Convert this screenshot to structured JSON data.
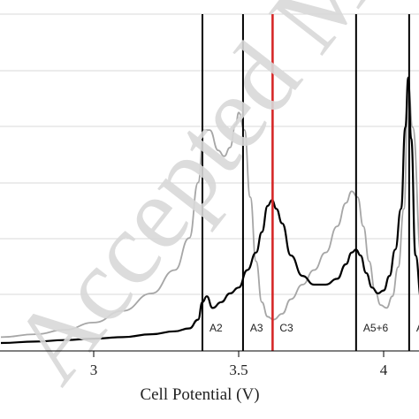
{
  "chart_data": {
    "type": "line",
    "title": "",
    "xlabel": "Cell Potential (V)",
    "ylabel": "",
    "xlim": [
      2.68,
      4.13
    ],
    "ylim": [
      0,
      1
    ],
    "x_ticks": [
      "3",
      "3.5",
      "4"
    ],
    "x_tick_values": [
      3.0,
      3.5,
      4.0
    ],
    "grid": "horizontal",
    "series": [
      {
        "color": "#a6a6a6",
        "x": [
          2.68,
          2.8,
          2.9,
          3.0,
          3.1,
          3.2,
          3.28,
          3.33,
          3.36,
          3.38,
          3.4,
          3.43,
          3.45,
          3.47,
          3.49,
          3.5,
          3.52,
          3.54,
          3.56,
          3.58,
          3.6,
          3.62,
          3.65,
          3.68,
          3.72,
          3.76,
          3.8,
          3.84,
          3.87,
          3.89,
          3.91,
          3.93,
          3.95,
          3.97,
          3.99,
          4.01,
          4.03,
          4.05,
          4.07,
          4.085,
          4.1,
          4.13
        ],
        "values": [
          0.02,
          0.03,
          0.045,
          0.07,
          0.11,
          0.17,
          0.25,
          0.36,
          0.55,
          0.73,
          0.73,
          0.66,
          0.64,
          0.67,
          0.75,
          0.79,
          0.73,
          0.5,
          0.28,
          0.14,
          0.09,
          0.08,
          0.1,
          0.15,
          0.2,
          0.25,
          0.31,
          0.4,
          0.48,
          0.52,
          0.5,
          0.4,
          0.28,
          0.18,
          0.13,
          0.12,
          0.16,
          0.26,
          0.46,
          0.88,
          0.74,
          0.3
        ]
      },
      {
        "color": "#000000",
        "x": [
          2.68,
          2.8,
          2.9,
          3.0,
          3.1,
          3.2,
          3.28,
          3.33,
          3.36,
          3.375,
          3.39,
          3.41,
          3.44,
          3.47,
          3.5,
          3.53,
          3.56,
          3.58,
          3.6,
          3.615,
          3.63,
          3.65,
          3.68,
          3.72,
          3.76,
          3.8,
          3.84,
          3.87,
          3.89,
          3.905,
          3.92,
          3.94,
          3.96,
          3.98,
          4.0,
          4.02,
          4.04,
          4.06,
          4.075,
          4.085,
          4.095,
          4.11,
          4.13
        ],
        "values": [
          0.0,
          0.005,
          0.01,
          0.015,
          0.02,
          0.03,
          0.04,
          0.05,
          0.08,
          0.14,
          0.16,
          0.12,
          0.14,
          0.17,
          0.19,
          0.25,
          0.31,
          0.38,
          0.47,
          0.49,
          0.46,
          0.41,
          0.3,
          0.23,
          0.2,
          0.2,
          0.22,
          0.27,
          0.31,
          0.32,
          0.3,
          0.24,
          0.19,
          0.17,
          0.18,
          0.23,
          0.32,
          0.46,
          0.74,
          0.91,
          0.7,
          0.3,
          0.15
        ]
      }
    ],
    "markers": [
      {
        "x": 3.375,
        "label": "A2",
        "color": "#000000"
      },
      {
        "x": 3.515,
        "label": "A3",
        "color": "#000000"
      },
      {
        "x": 3.617,
        "label": "C3",
        "color": "#d62828"
      },
      {
        "x": 3.905,
        "label": "A5+6",
        "color": "#000000"
      },
      {
        "x": 4.088,
        "label": "A",
        "color": "#000000"
      }
    ]
  },
  "watermark": "Accepted Ma"
}
